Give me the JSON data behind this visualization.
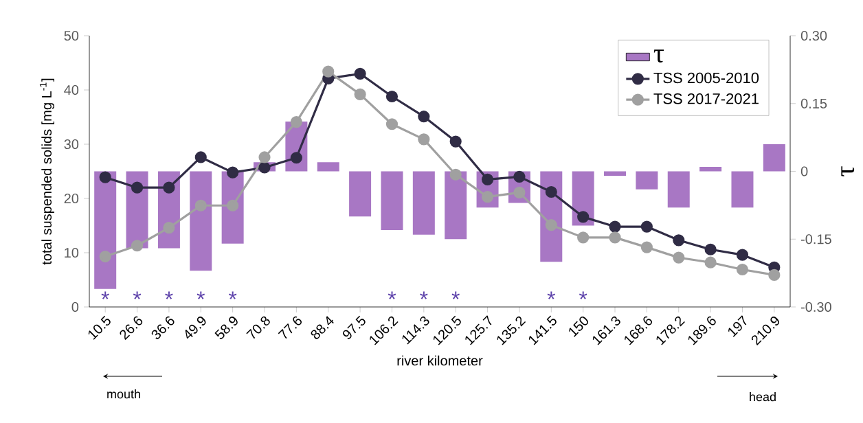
{
  "chart_data": {
    "type": "bar",
    "xlabel": "river kilometer",
    "ylabel": "total suspended solids [mg L$^{-1}$]",
    "y2label": "τ",
    "categories": [
      "10.5",
      "26.6",
      "36.6",
      "49.9",
      "58.9",
      "70.8",
      "77.6",
      "88.4",
      "97.5",
      "106.2",
      "114.3",
      "120.5",
      "125.7",
      "135.2",
      "141.5",
      "150",
      "161.3",
      "168.6",
      "178.2",
      "189.6",
      "197",
      "210.9"
    ],
    "series": [
      {
        "name": "τ",
        "axis": "y2",
        "color": "#a877c4",
        "values": [
          -0.26,
          -0.17,
          -0.17,
          -0.22,
          -0.16,
          0.02,
          0.11,
          0.02,
          -0.1,
          -0.13,
          -0.14,
          -0.15,
          -0.08,
          -0.07,
          -0.2,
          -0.12,
          -0.01,
          -0.04,
          -0.08,
          0.01,
          -0.08,
          0.06
        ],
        "value_labels": [
          "*",
          "*",
          "*",
          "*",
          "*",
          null,
          null,
          null,
          null,
          "*",
          "*",
          "*",
          null,
          null,
          "*",
          "*",
          null,
          null,
          null,
          null,
          null,
          null
        ]
      },
      {
        "name": "TSS 2005-2010",
        "type": "line",
        "color": "#302c45",
        "values": [
          23.9,
          22.0,
          22.0,
          27.6,
          24.8,
          25.7,
          27.5,
          42.1,
          43.0,
          38.8,
          35.1,
          30.5,
          23.5,
          24.0,
          21.2,
          16.6,
          14.8,
          14.8,
          12.3,
          10.6,
          9.6,
          7.3
        ]
      },
      {
        "name": "TSS 2017-2021",
        "type": "line",
        "color": "#a0a0a0",
        "values": [
          9.3,
          11.3,
          14.6,
          18.7,
          18.7,
          27.6,
          34.1,
          43.4,
          39.2,
          33.7,
          30.9,
          24.4,
          20.3,
          21.1,
          15.1,
          12.8,
          12.8,
          11.0,
          9.1,
          8.2,
          6.9,
          5.9
        ]
      }
    ],
    "ylim": [
      0,
      50
    ],
    "yticks": [
      0,
      10,
      20,
      30,
      40,
      50
    ],
    "y2lim": [
      -0.3,
      0.3
    ],
    "y2ticks": [
      {
        "value": -0.3,
        "label": "-0.30"
      },
      {
        "value": -0.15,
        "label": "-0.15"
      },
      {
        "value": 0,
        "label": "0"
      },
      {
        "value": 0.15,
        "label": "0.15"
      },
      {
        "value": 0.3,
        "label": "0.30"
      }
    ],
    "marker": "circle",
    "legend": "top right",
    "grid": false,
    "annotations": [
      "mouth",
      "head"
    ]
  }
}
